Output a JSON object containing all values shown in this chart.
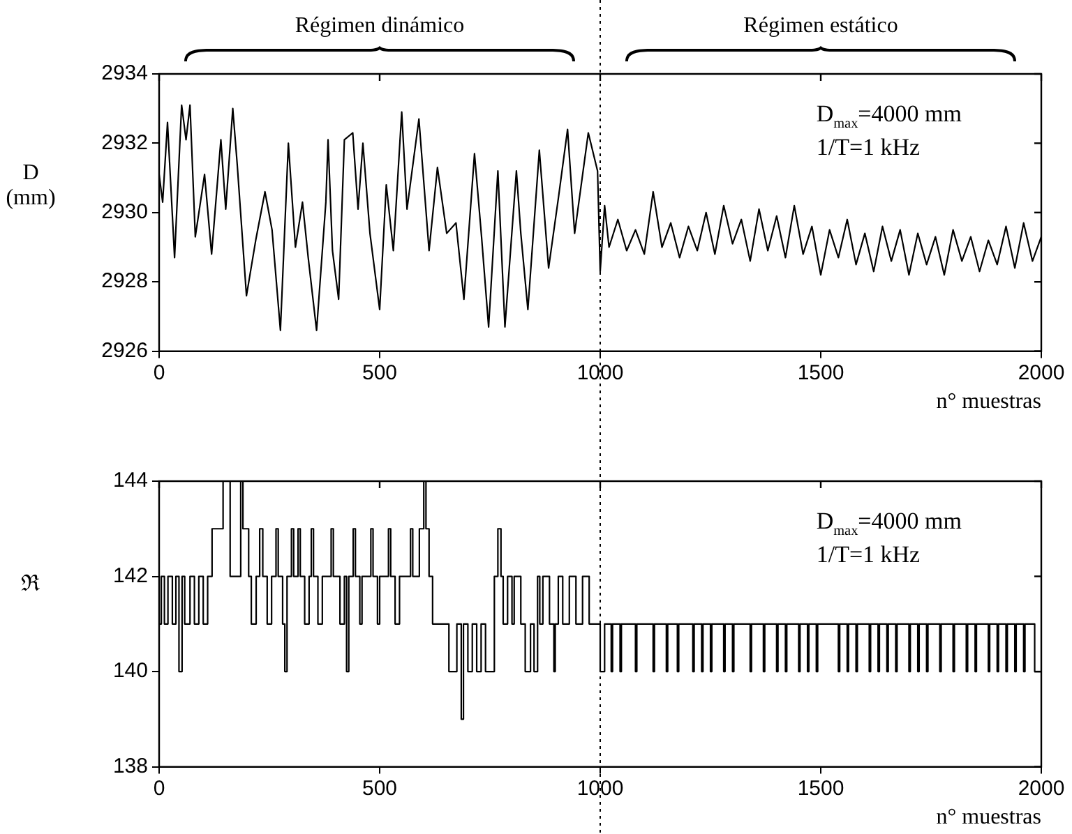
{
  "chart_data": [
    {
      "type": "line",
      "ylabel": "D (mm)",
      "xlabel": "n° muestras",
      "annotations": [
        "Régimen dinámico",
        "Régimen estático",
        "D$_{max}$=4000 mm",
        "1/T=1 kHz"
      ],
      "xlim": [
        0,
        2000
      ],
      "xticks": [
        0,
        500,
        1000,
        1500,
        2000
      ],
      "ylim": [
        2926,
        2934
      ],
      "yticks": [
        2926,
        2928,
        2930,
        2932,
        2934
      ],
      "grid": false,
      "legend": false,
      "line_style": "solid",
      "marker": "none",
      "ref_lines": [
        {
          "axis": "x",
          "value": 1000,
          "line_style": "dotted",
          "color": "#000000"
        }
      ],
      "series": [
        {
          "color": "#000000",
          "x": [
            0,
            8,
            19,
            35,
            51,
            61,
            70,
            82,
            103,
            119,
            140,
            151,
            167,
            177,
            198,
            219,
            240,
            256,
            275,
            293,
            309,
            325,
            338,
            357,
            378,
            383,
            393,
            407,
            420,
            439,
            451,
            462,
            478,
            500,
            515,
            531,
            550,
            562,
            589,
            612,
            631,
            652,
            673,
            691,
            715,
            731,
            747,
            768,
            784,
            810,
            820,
            836,
            862,
            883,
            905,
            926,
            942,
            973,
            994,
            1000,
            1010,
            1020,
            1040,
            1060,
            1080,
            1100,
            1120,
            1140,
            1160,
            1180,
            1200,
            1220,
            1240,
            1260,
            1280,
            1300,
            1320,
            1340,
            1360,
            1380,
            1400,
            1420,
            1440,
            1460,
            1480,
            1500,
            1520,
            1540,
            1560,
            1580,
            1600,
            1620,
            1640,
            1660,
            1680,
            1700,
            1720,
            1740,
            1760,
            1780,
            1800,
            1820,
            1840,
            1860,
            1880,
            1900,
            1920,
            1940,
            1960,
            1980,
            2000
          ],
          "values": [
            2931.1,
            2930.3,
            2932.6,
            2928.7,
            2933.1,
            2932.1,
            2933.1,
            2929.3,
            2931.1,
            2928.8,
            2932.1,
            2930.1,
            2933.0,
            2931.4,
            2927.6,
            2929.2,
            2930.6,
            2929.5,
            2926.6,
            2932.0,
            2929.0,
            2930.3,
            2928.7,
            2926.6,
            2930.3,
            2932.1,
            2928.9,
            2927.5,
            2932.1,
            2932.3,
            2930.1,
            2932.0,
            2929.4,
            2927.2,
            2930.8,
            2928.9,
            2932.9,
            2930.1,
            2932.7,
            2928.9,
            2931.3,
            2929.4,
            2929.7,
            2927.5,
            2931.7,
            2929.3,
            2926.7,
            2931.2,
            2926.7,
            2931.2,
            2929.4,
            2927.2,
            2931.8,
            2928.4,
            2930.4,
            2932.4,
            2929.4,
            2932.3,
            2931.2,
            2928.3,
            2930.2,
            2929.0,
            2929.8,
            2928.9,
            2929.5,
            2928.8,
            2930.6,
            2929.0,
            2929.7,
            2928.7,
            2929.6,
            2928.9,
            2930.0,
            2928.8,
            2930.2,
            2929.1,
            2929.8,
            2928.6,
            2930.1,
            2928.9,
            2929.9,
            2928.7,
            2930.2,
            2928.8,
            2929.6,
            2928.2,
            2929.5,
            2928.7,
            2929.8,
            2928.5,
            2929.4,
            2928.3,
            2929.6,
            2928.6,
            2929.5,
            2928.2,
            2929.4,
            2928.5,
            2929.3,
            2928.2,
            2929.5,
            2928.6,
            2929.3,
            2928.3,
            2929.2,
            2928.5,
            2929.6,
            2928.4,
            2929.7,
            2928.6,
            2929.3
          ]
        }
      ]
    },
    {
      "type": "step",
      "ylabel": "ℜ",
      "xlabel": "n° muestras",
      "annotations": [
        "D$_{max}$=4000 mm",
        "1/T=1 kHz"
      ],
      "xlim": [
        0,
        2000
      ],
      "xticks": [
        0,
        500,
        1000,
        1500,
        2000
      ],
      "ylim": [
        138,
        144
      ],
      "yticks": [
        138,
        140,
        142,
        144
      ],
      "grid": false,
      "legend": false,
      "line_style": "solid",
      "marker": "none",
      "ref_lines": [
        {
          "axis": "x",
          "value": 1000,
          "line_style": "dotted",
          "color": "#000000"
        }
      ],
      "series": [
        {
          "color": "#000000",
          "x": [
            0,
            5,
            12,
            20,
            30,
            38,
            45,
            52,
            58,
            70,
            80,
            90,
            100,
            110,
            120,
            145,
            161,
            185,
            190,
            203,
            209,
            220,
            228,
            235,
            245,
            255,
            265,
            270,
            280,
            285,
            290,
            300,
            305,
            315,
            320,
            330,
            340,
            345,
            350,
            360,
            370,
            390,
            395,
            410,
            420,
            425,
            430,
            440,
            445,
            455,
            460,
            480,
            485,
            495,
            500,
            520,
            525,
            535,
            545,
            570,
            575,
            590,
            600,
            605,
            612,
            620,
            657,
            675,
            685,
            690,
            700,
            710,
            720,
            730,
            740,
            760,
            768,
            775,
            780,
            790,
            800,
            805,
            820,
            830,
            842,
            850,
            858,
            863,
            870,
            885,
            895,
            898,
            905,
            915,
            930,
            945,
            960,
            975,
            990,
            1000,
            1010,
            1025,
            1028,
            1045,
            1048,
            1080,
            1083,
            1120,
            1123,
            1150,
            1153,
            1175,
            1178,
            1210,
            1213,
            1230,
            1233,
            1250,
            1253,
            1280,
            1283,
            1300,
            1303,
            1340,
            1343,
            1370,
            1373,
            1400,
            1403,
            1420,
            1423,
            1450,
            1453,
            1470,
            1473,
            1490,
            1493,
            1540,
            1543,
            1560,
            1563,
            1580,
            1583,
            1610,
            1613,
            1630,
            1633,
            1650,
            1653,
            1670,
            1673,
            1700,
            1703,
            1720,
            1723,
            1740,
            1743,
            1770,
            1773,
            1800,
            1803,
            1830,
            1833,
            1850,
            1853,
            1880,
            1883,
            1900,
            1903,
            1920,
            1923,
            1940,
            1943,
            1960,
            1963,
            1985,
            1988,
            2000
          ],
          "values": [
            142,
            141,
            142,
            141,
            142,
            141,
            142,
            140,
            142,
            141,
            142,
            141,
            142,
            141,
            142,
            143,
            144,
            142,
            144,
            143,
            142,
            141,
            142,
            143,
            142,
            141,
            142,
            143,
            142,
            141,
            140,
            142,
            143,
            142,
            143,
            142,
            141,
            142,
            143,
            142,
            141,
            142,
            143,
            142,
            141,
            142,
            140,
            142,
            143,
            142,
            141,
            142,
            143,
            142,
            141,
            142,
            143,
            142,
            141,
            142,
            143,
            142,
            143,
            144,
            143,
            142,
            141,
            140,
            141,
            139,
            141,
            140,
            141,
            140,
            141,
            140,
            142,
            143,
            142,
            141,
            142,
            141,
            142,
            141,
            140,
            141,
            140,
            142,
            141,
            142,
            141,
            140,
            141,
            142,
            141,
            142,
            141,
            142,
            141,
            141,
            140,
            141,
            140,
            141,
            140,
            141,
            140,
            141,
            140,
            141,
            140,
            141,
            140,
            141,
            140,
            141,
            140,
            141,
            140,
            141,
            140,
            141,
            140,
            141,
            140,
            141,
            140,
            141,
            140,
            141,
            140,
            141,
            140,
            141,
            140,
            141,
            140,
            141,
            140,
            141,
            140,
            141,
            140,
            141,
            140,
            141,
            140,
            141,
            140,
            141,
            140,
            141,
            140,
            141,
            140,
            141,
            140,
            141,
            140,
            141,
            140,
            141,
            140,
            141,
            140,
            141,
            140,
            141,
            140,
            141,
            140,
            141,
            140,
            141,
            140,
            141,
            140,
            140
          ]
        }
      ]
    }
  ]
}
